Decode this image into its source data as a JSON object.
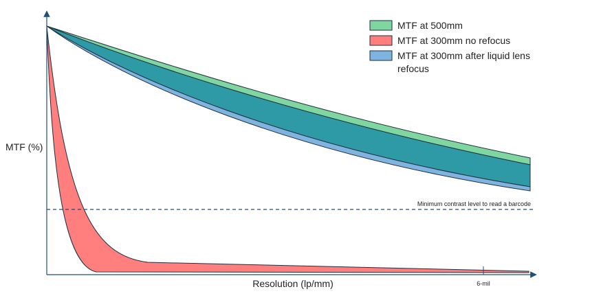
{
  "axes": {
    "y_label": "MTF (%)",
    "x_label": "Resolution (lp/mm)",
    "x_tick": "6-mil"
  },
  "legend": [
    {
      "label": [
        "MTF at 500mm"
      ]
    },
    {
      "label": [
        "MTF at 300mm no refocus"
      ]
    },
    {
      "label": [
        "MTF at 300mm after liquid lens",
        "refocus"
      ]
    }
  ],
  "annotation": "Minimum contrast level to read a barcode"
}
